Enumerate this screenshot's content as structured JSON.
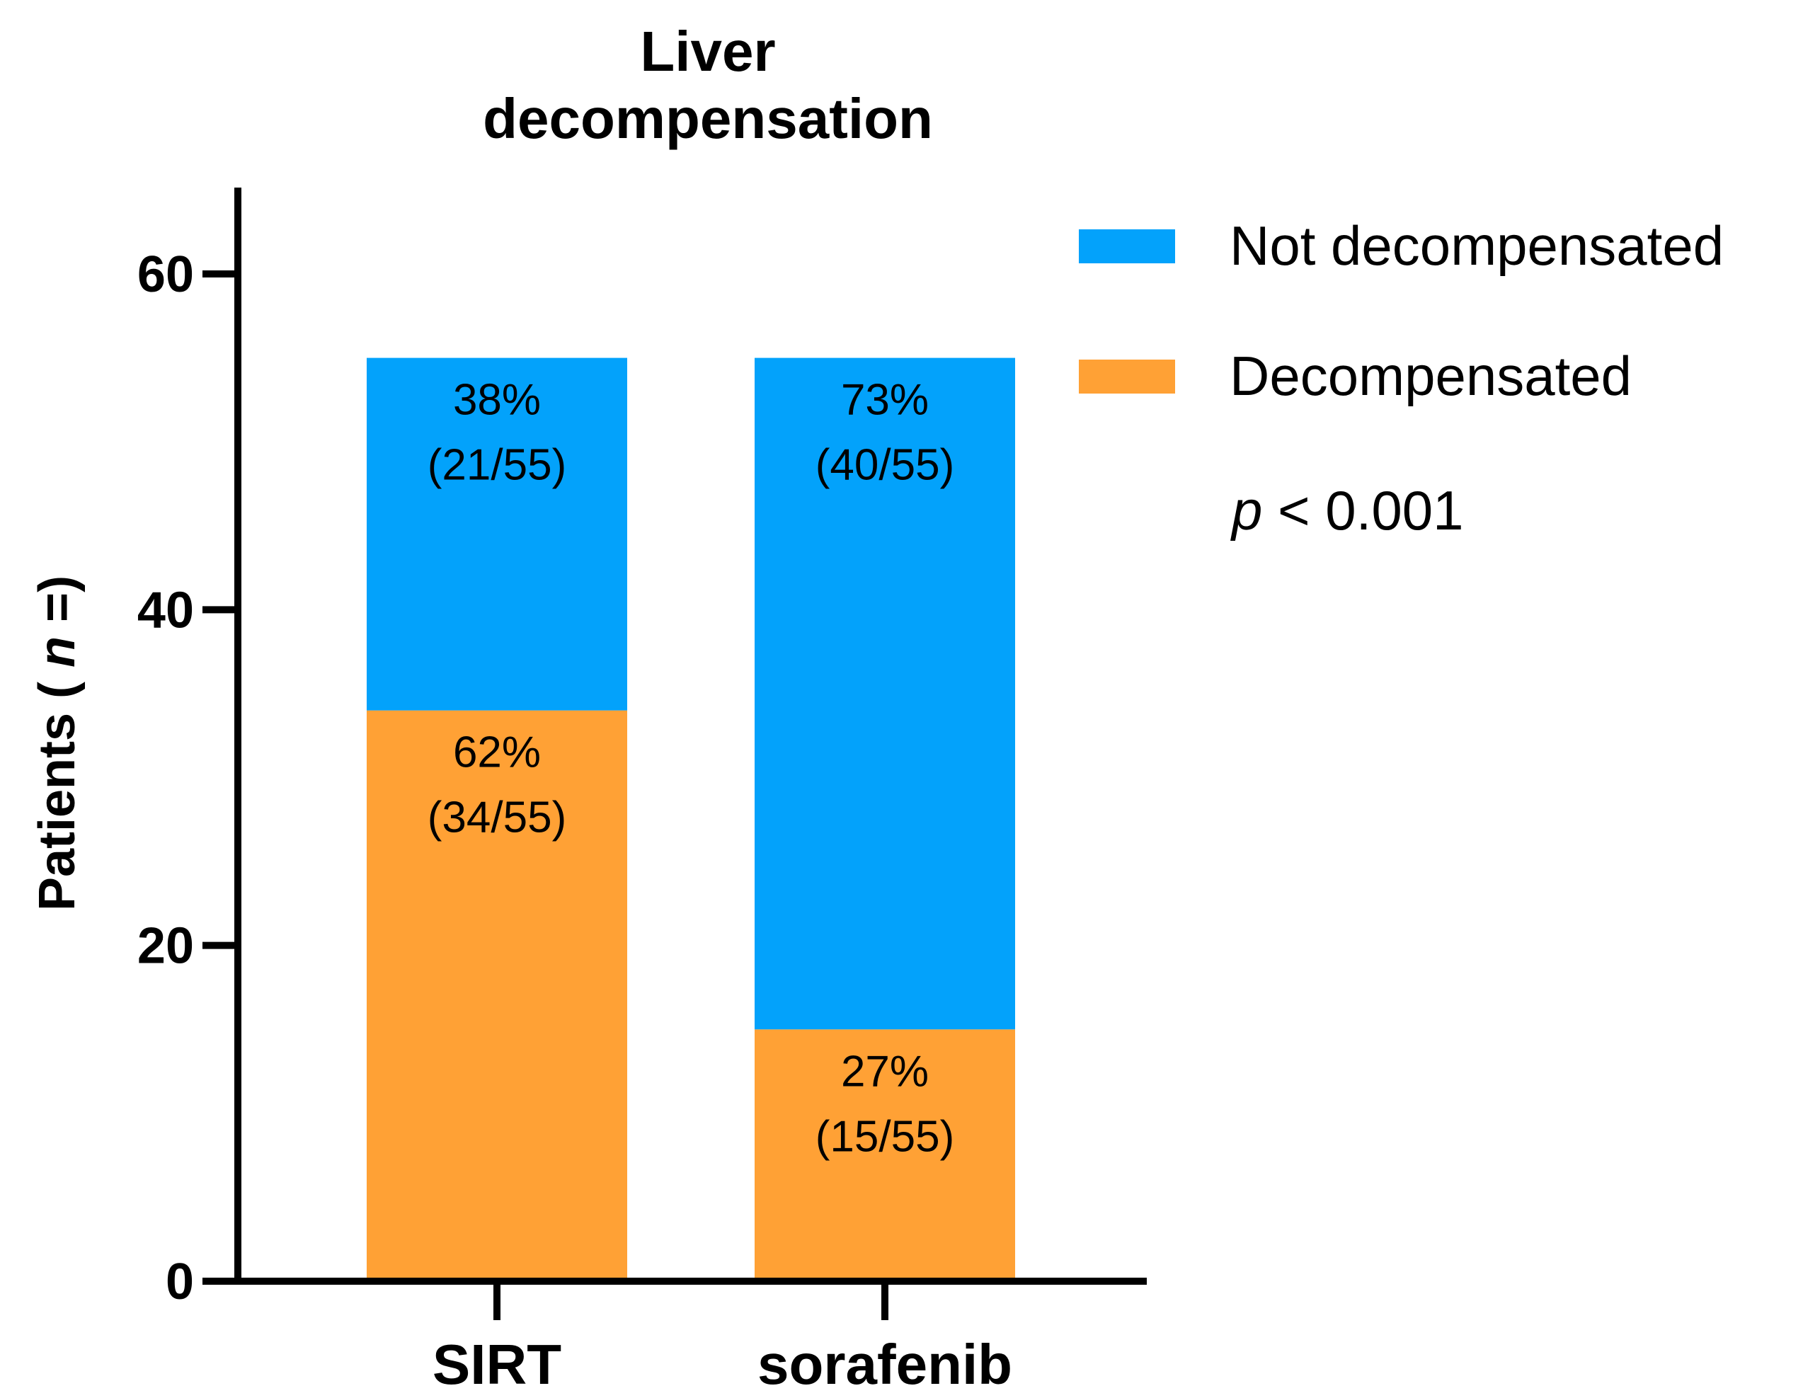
{
  "chart_data": {
    "type": "bar",
    "stacked": true,
    "title_lines": [
      "Liver",
      "decompensation"
    ],
    "ylabel_prefix": "Patients ( ",
    "ylabel_italic": "n",
    "ylabel_suffix": " =)",
    "xlabel": "",
    "categories": [
      "SIRT",
      "sorafenib"
    ],
    "ylim": [
      0,
      65
    ],
    "yticks": [
      0,
      20,
      40,
      60
    ],
    "series": [
      {
        "name": "Decompensated",
        "color": "#FFA135",
        "values": [
          34,
          15
        ],
        "labels": [
          [
            "62%",
            "(34/55)"
          ],
          [
            "27%",
            "(15/55)"
          ]
        ]
      },
      {
        "name": "Not decompensated",
        "color": "#03A2FB",
        "values": [
          21,
          40
        ],
        "labels": [
          [
            "38%",
            "(21/55)"
          ],
          [
            "73%",
            "(40/55)"
          ]
        ]
      }
    ],
    "legend_order": [
      "Not decompensated",
      "Decompensated"
    ],
    "legend_position": "top-right",
    "annotation_italic": "p",
    "annotation_rest": " < 0.001",
    "grid": false
  }
}
